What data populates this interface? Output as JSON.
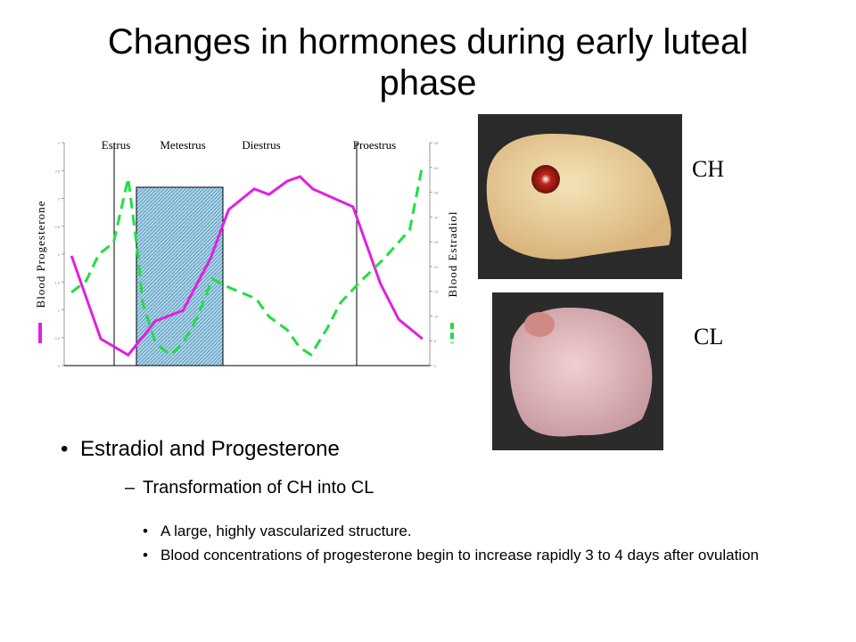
{
  "title": "Changes in hormones during early luteal phase",
  "chart_data": {
    "type": "line",
    "phases": [
      "Estrus",
      "Metestrus",
      "Diestrus",
      "Proestrus"
    ],
    "ylabel": "Blood Progesterone",
    "y2label": "Blood Estradiol",
    "xlim": [
      0,
      20
    ],
    "ylim": [
      0,
      4
    ],
    "yticks": [
      0,
      0.5,
      1,
      1.5,
      2,
      2.5,
      3,
      3.5,
      4
    ],
    "y2lim": [
      0,
      45
    ],
    "y2ticks": [
      0,
      5,
      10,
      15,
      20,
      25,
      30,
      35,
      40,
      45
    ],
    "series": [
      {
        "name": "Blood Progesterone",
        "color": "#e020e0",
        "x": [
          0.4,
          2.0,
          3.5,
          5.0,
          6.5,
          8.0,
          9.0,
          10.4,
          11.2,
          12.2,
          12.9,
          13.6,
          15.8,
          17.3,
          18.3,
          19.6
        ],
        "values": [
          1.97,
          0.48,
          0.19,
          0.8,
          0.99,
          1.92,
          2.8,
          3.17,
          3.07,
          3.31,
          3.39,
          3.17,
          2.85,
          1.47,
          0.83,
          0.48
        ]
      },
      {
        "name": "Blood Estradiol",
        "color": "#22dd44",
        "axis": "y2",
        "x": [
          0.4,
          1.2,
          1.9,
          2.7,
          3.5,
          4.0,
          4.3,
          5.0,
          5.8,
          6.5,
          7.3,
          8.1,
          9.0,
          10.5,
          11.2,
          12.2,
          12.9,
          13.5,
          14.4,
          15.1,
          16.1,
          17.5,
          18.9,
          19.6
        ],
        "values": [
          14.8,
          17.1,
          22.5,
          24.8,
          37.8,
          23.4,
          12.6,
          4.5,
          2.2,
          4.5,
          9.9,
          17.5,
          15.8,
          13.5,
          9.9,
          7.2,
          3.6,
          2.2,
          7.6,
          12.6,
          16.6,
          21.6,
          27.4,
          40.5
        ]
      }
    ]
  },
  "images": [
    {
      "label": "CH"
    },
    {
      "label": "CL"
    }
  ],
  "bullets": [
    {
      "level": 1,
      "text": "Estradiol and Progesterone"
    },
    {
      "level": 2,
      "text": "Transformation of CH into CL"
    },
    {
      "level": 3,
      "text": "A large, highly vascularized structure."
    },
    {
      "level": 3,
      "text": "Blood concentrations of progesterone begin to increase rapidly 3 to 4 days after ovulation"
    }
  ]
}
